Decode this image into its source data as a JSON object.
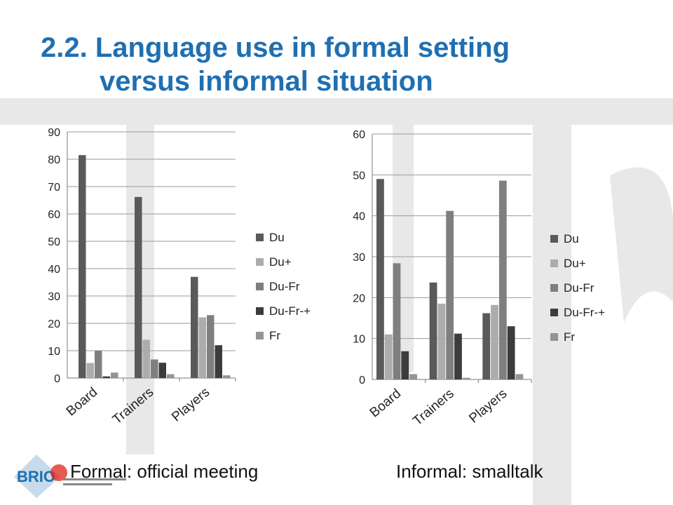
{
  "slide": {
    "title_line1": "2.2. Language use in formal setting",
    "title_line2": "versus informal situation"
  },
  "captions": {
    "left": "Formal: official meeting",
    "right": "Informal: smalltalk"
  },
  "logo": {
    "text": "BRIO"
  },
  "colors": {
    "title": "#1f6fb2",
    "series": [
      "#5a5a5a",
      "#acacac",
      "#7f7f7f",
      "#3c3c3c",
      "#949494"
    ]
  },
  "chart_data": [
    {
      "type": "bar",
      "title": "",
      "categories": [
        "Board",
        "Trainers",
        "Players"
      ],
      "series": [
        {
          "name": "Du",
          "values": [
            81.5,
            66.2,
            37
          ]
        },
        {
          "name": "Du+",
          "values": [
            5.5,
            14,
            22.2
          ]
        },
        {
          "name": "Du-Fr",
          "values": [
            10,
            6.8,
            23
          ]
        },
        {
          "name": "Du-Fr-+",
          "values": [
            0.6,
            5.6,
            12
          ]
        },
        {
          "name": "Fr",
          "values": [
            2,
            1.4,
            1
          ]
        }
      ],
      "ylim": [
        0,
        90
      ],
      "yticks": [
        0,
        10,
        20,
        30,
        40,
        50,
        60,
        70,
        80,
        90
      ],
      "grid": true,
      "legend": "right"
    },
    {
      "type": "bar",
      "title": "",
      "categories": [
        "Board",
        "Trainers",
        "Players"
      ],
      "series": [
        {
          "name": "Du",
          "values": [
            49,
            23.7,
            16.2
          ]
        },
        {
          "name": "Du+",
          "values": [
            11,
            18.5,
            18.2
          ]
        },
        {
          "name": "Du-Fr",
          "values": [
            28.4,
            41.2,
            48.6
          ]
        },
        {
          "name": "Du-Fr-+",
          "values": [
            6.9,
            11.2,
            13
          ]
        },
        {
          "name": "Fr",
          "values": [
            1.3,
            0.4,
            1.3
          ]
        }
      ],
      "ylim": [
        0,
        60
      ],
      "yticks": [
        0,
        10,
        20,
        30,
        40,
        50,
        60
      ],
      "grid": true,
      "legend": "right"
    }
  ]
}
